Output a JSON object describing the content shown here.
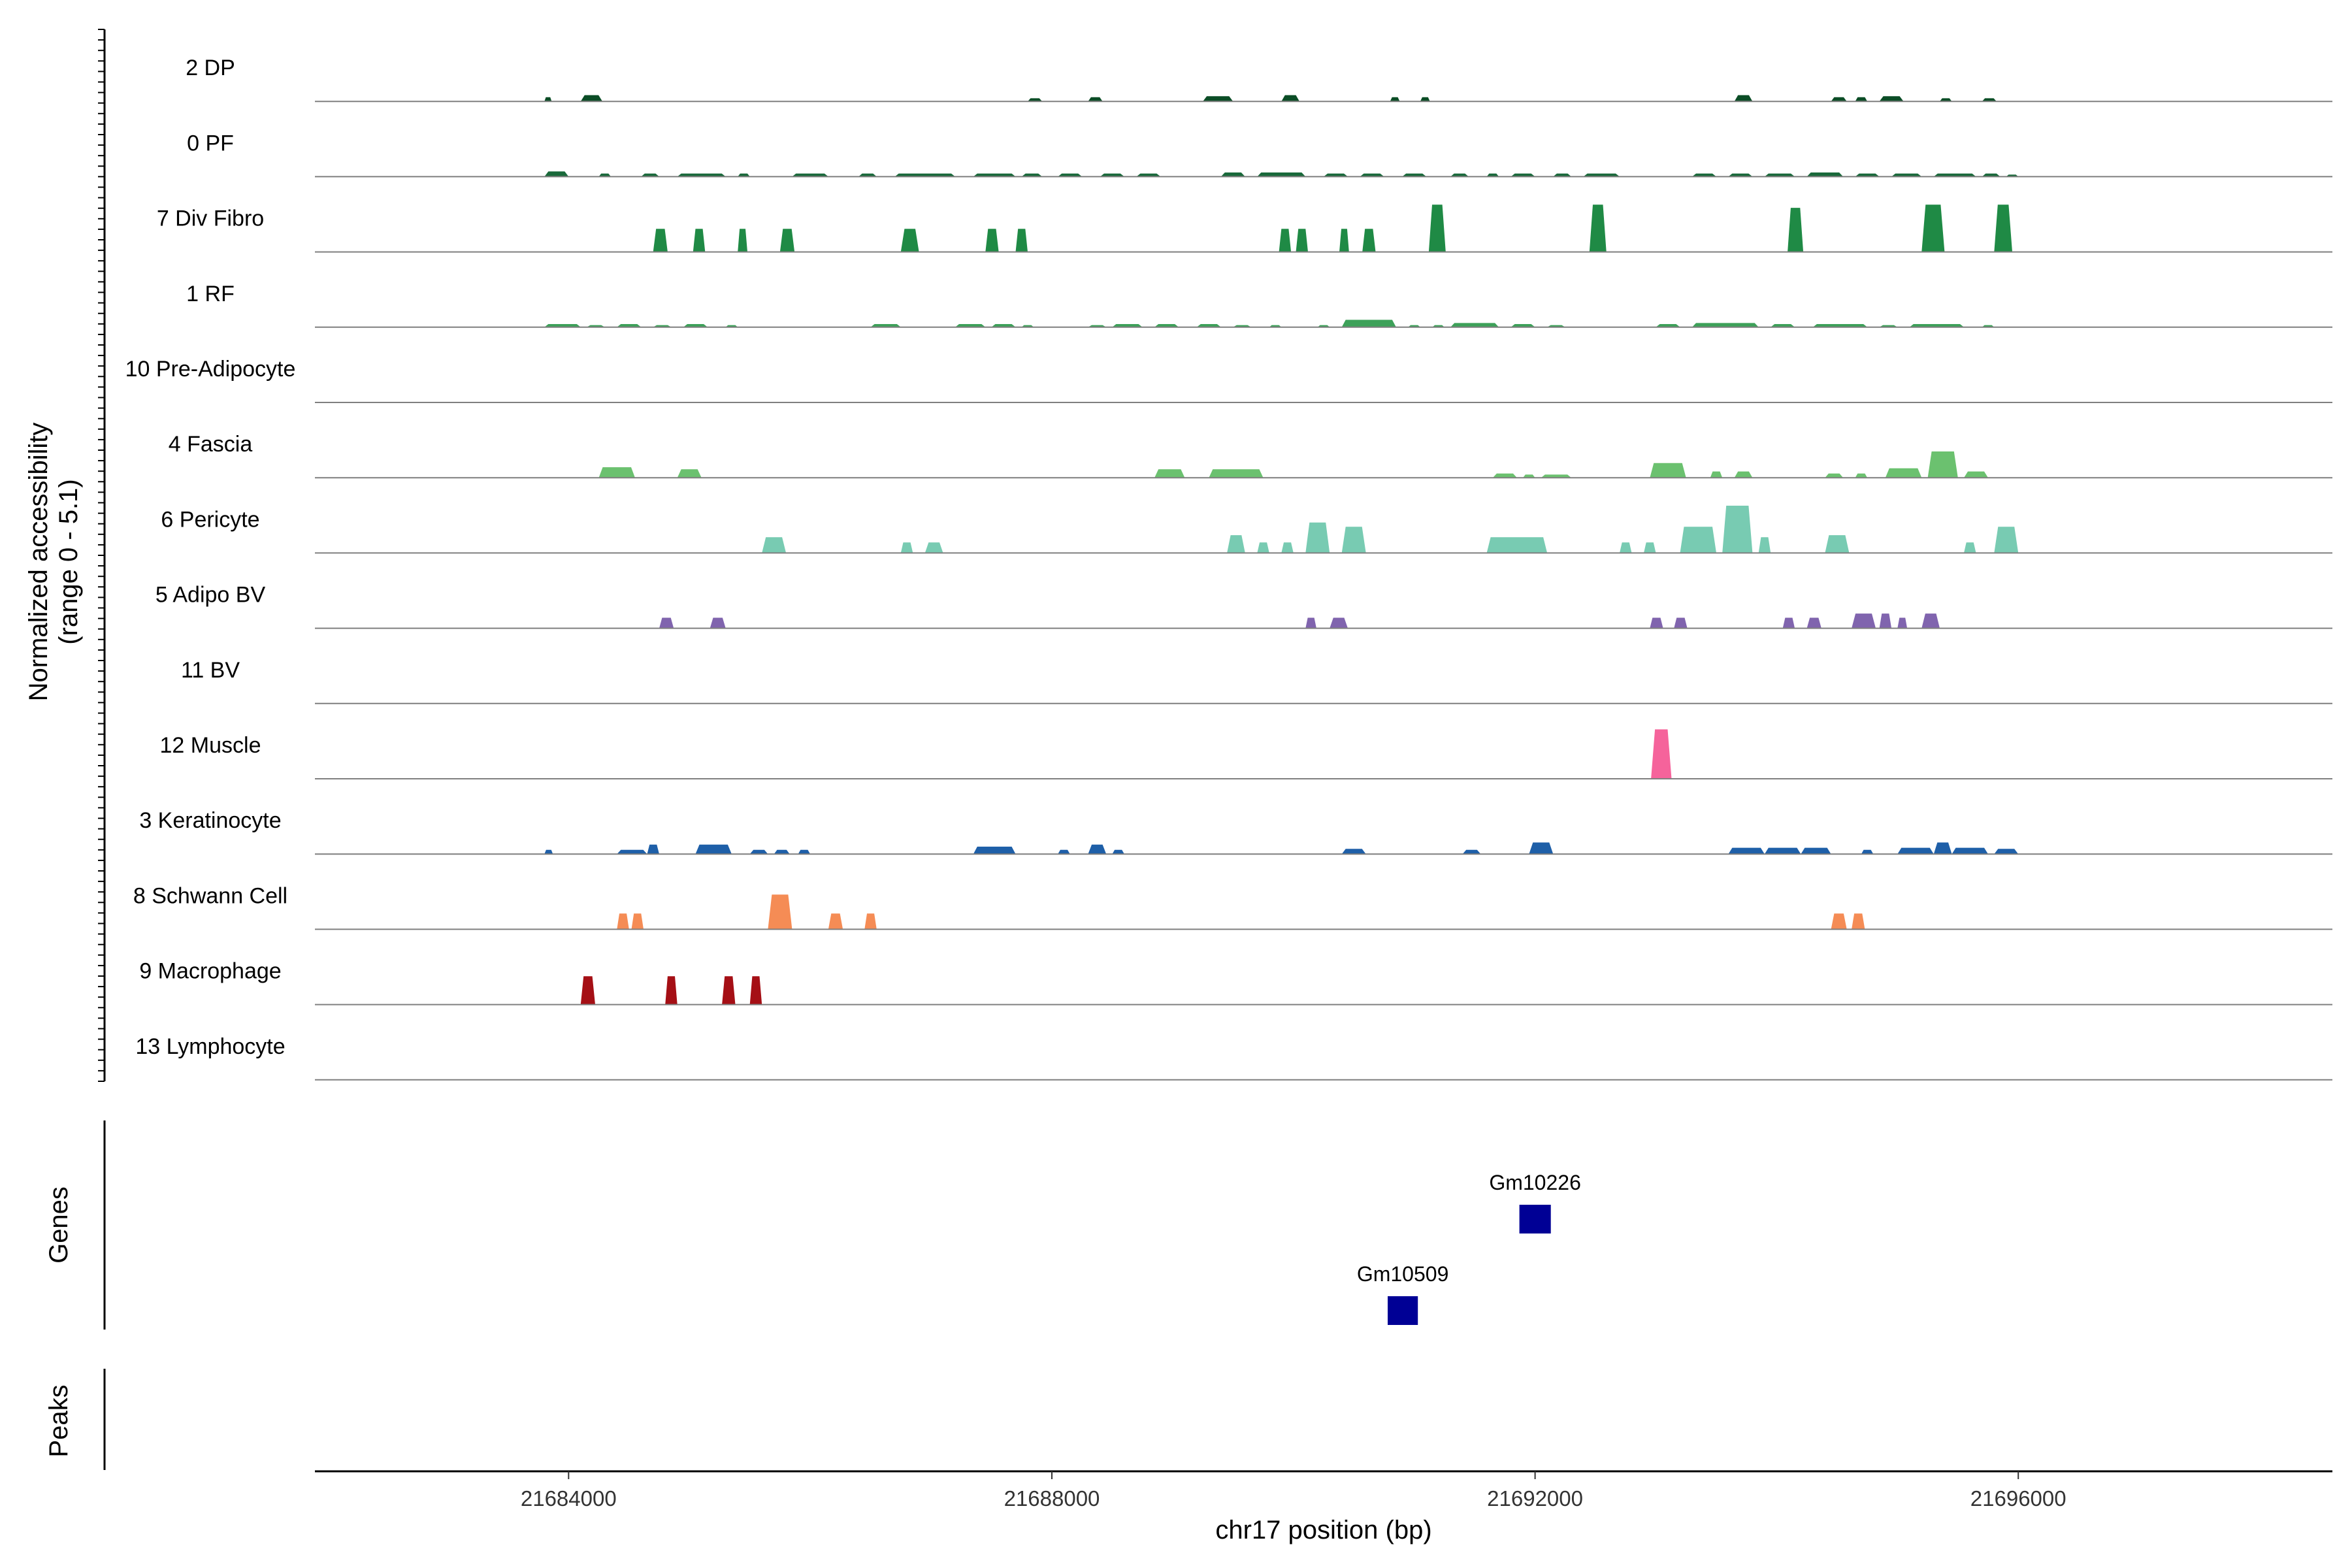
{
  "chart_data": {
    "type": "area",
    "x_axis": {
      "title": "chr17 position (bp)",
      "range": [
        21681900,
        21698600
      ],
      "ticks": [
        21684000,
        21688000,
        21692000,
        21696000
      ],
      "tick_labels": [
        "21684000",
        "21688000",
        "21692000",
        "21696000"
      ]
    },
    "y_axis": {
      "title_line1": "Normalized accessibility",
      "title_line2": "(range 0 - 5.1)",
      "range": [
        0,
        5.1
      ]
    },
    "genes_label": "Genes",
    "peaks_label": "Peaks",
    "tracks": [
      {
        "name": "2 DP",
        "color": "#0b4d26",
        "peaks": [
          [
            21683800,
            21683860,
            0.4
          ],
          [
            21684100,
            21684280,
            0.6
          ],
          [
            21687800,
            21687920,
            0.3
          ],
          [
            21688300,
            21688420,
            0.4
          ],
          [
            21689250,
            21689500,
            0.5
          ],
          [
            21689900,
            21690050,
            0.6
          ],
          [
            21690800,
            21690880,
            0.4
          ],
          [
            21691050,
            21691130,
            0.4
          ],
          [
            21693650,
            21693800,
            0.6
          ],
          [
            21694450,
            21694580,
            0.4
          ],
          [
            21694650,
            21694750,
            0.4
          ],
          [
            21694850,
            21695050,
            0.5
          ],
          [
            21695350,
            21695450,
            0.3
          ],
          [
            21695700,
            21695820,
            0.3
          ]
        ]
      },
      {
        "name": "0 PF",
        "color": "#19693a",
        "peaks": [
          [
            21683800,
            21684000,
            0.5
          ],
          [
            21684250,
            21684350,
            0.3
          ],
          [
            21684600,
            21684750,
            0.3
          ],
          [
            21684900,
            21685300,
            0.3
          ],
          [
            21685400,
            21685500,
            0.3
          ],
          [
            21685850,
            21686150,
            0.3
          ],
          [
            21686400,
            21686550,
            0.3
          ],
          [
            21686700,
            21687200,
            0.3
          ],
          [
            21687350,
            21687700,
            0.3
          ],
          [
            21687750,
            21687920,
            0.3
          ],
          [
            21688050,
            21688250,
            0.3
          ],
          [
            21688400,
            21688600,
            0.3
          ],
          [
            21688700,
            21688900,
            0.3
          ],
          [
            21689400,
            21689600,
            0.4
          ],
          [
            21689700,
            21690100,
            0.4
          ],
          [
            21690250,
            21690450,
            0.3
          ],
          [
            21690550,
            21690750,
            0.3
          ],
          [
            21690900,
            21691100,
            0.3
          ],
          [
            21691300,
            21691450,
            0.3
          ],
          [
            21691600,
            21691700,
            0.3
          ],
          [
            21691800,
            21692000,
            0.3
          ],
          [
            21692150,
            21692300,
            0.3
          ],
          [
            21692400,
            21692700,
            0.3
          ],
          [
            21693300,
            21693500,
            0.3
          ],
          [
            21693600,
            21693800,
            0.3
          ],
          [
            21693900,
            21694150,
            0.3
          ],
          [
            21694250,
            21694550,
            0.4
          ],
          [
            21694650,
            21694850,
            0.3
          ],
          [
            21694950,
            21695200,
            0.3
          ],
          [
            21695300,
            21695650,
            0.3
          ],
          [
            21695700,
            21695850,
            0.3
          ],
          [
            21695900,
            21696000,
            0.2
          ]
        ]
      },
      {
        "name": "7 Div Fibro",
        "color": "#1f8a45",
        "peaks": [
          [
            21684700,
            21684820,
            2.2
          ],
          [
            21685030,
            21685130,
            2.2
          ],
          [
            21685400,
            21685480,
            2.2
          ],
          [
            21685750,
            21685870,
            2.2
          ],
          [
            21686750,
            21686900,
            2.2
          ],
          [
            21687450,
            21687560,
            2.2
          ],
          [
            21687700,
            21687800,
            2.2
          ],
          [
            21689880,
            21689980,
            2.2
          ],
          [
            21690020,
            21690120,
            2.2
          ],
          [
            21690380,
            21690460,
            2.2
          ],
          [
            21690570,
            21690680,
            2.2
          ],
          [
            21691120,
            21691260,
            4.5
          ],
          [
            21692450,
            21692590,
            4.5
          ],
          [
            21694090,
            21694220,
            4.2
          ],
          [
            21695200,
            21695390,
            4.5
          ],
          [
            21695800,
            21695950,
            4.5
          ]
        ]
      },
      {
        "name": "1 RF",
        "color": "#3da159",
        "peaks": [
          [
            21683800,
            21684100,
            0.3
          ],
          [
            21684150,
            21684300,
            0.2
          ],
          [
            21684400,
            21684600,
            0.3
          ],
          [
            21684700,
            21684850,
            0.2
          ],
          [
            21684950,
            21685150,
            0.3
          ],
          [
            21685300,
            21685400,
            0.2
          ],
          [
            21686500,
            21686750,
            0.3
          ],
          [
            21687200,
            21687450,
            0.3
          ],
          [
            21687500,
            21687700,
            0.3
          ],
          [
            21687750,
            21687850,
            0.2
          ],
          [
            21688300,
            21688450,
            0.2
          ],
          [
            21688500,
            21688750,
            0.3
          ],
          [
            21688850,
            21689050,
            0.3
          ],
          [
            21689200,
            21689400,
            0.3
          ],
          [
            21689500,
            21689650,
            0.2
          ],
          [
            21689800,
            21689900,
            0.2
          ],
          [
            21690200,
            21690300,
            0.2
          ],
          [
            21690400,
            21690850,
            0.7
          ],
          [
            21690950,
            21691050,
            0.2
          ],
          [
            21691150,
            21691250,
            0.2
          ],
          [
            21691300,
            21691700,
            0.4
          ],
          [
            21691800,
            21692000,
            0.3
          ],
          [
            21692100,
            21692250,
            0.2
          ],
          [
            21693000,
            21693200,
            0.3
          ],
          [
            21693300,
            21693850,
            0.4
          ],
          [
            21693950,
            21694150,
            0.3
          ],
          [
            21694300,
            21694750,
            0.3
          ],
          [
            21694850,
            21695000,
            0.2
          ],
          [
            21695100,
            21695550,
            0.3
          ],
          [
            21695700,
            21695800,
            0.2
          ]
        ]
      },
      {
        "name": "10 Pre-Adipocyte",
        "color": "#4fae62",
        "peaks": []
      },
      {
        "name": "4 Fascia",
        "color": "#6bc16f",
        "peaks": [
          [
            21684250,
            21684550,
            1.0
          ],
          [
            21684900,
            21685100,
            0.8
          ],
          [
            21688850,
            21689100,
            0.8
          ],
          [
            21689300,
            21689750,
            0.8
          ],
          [
            21691650,
            21691850,
            0.4
          ],
          [
            21691900,
            21692000,
            0.3
          ],
          [
            21692050,
            21692300,
            0.3
          ],
          [
            21692950,
            21693250,
            1.4
          ],
          [
            21693450,
            21693550,
            0.6
          ],
          [
            21693650,
            21693800,
            0.6
          ],
          [
            21694400,
            21694550,
            0.4
          ],
          [
            21694650,
            21694750,
            0.4
          ],
          [
            21694900,
            21695200,
            0.9
          ],
          [
            21695250,
            21695500,
            2.5
          ],
          [
            21695550,
            21695750,
            0.6
          ]
        ]
      },
      {
        "name": "6 Pericyte",
        "color": "#78cbb2",
        "peaks": [
          [
            21685600,
            21685800,
            1.5
          ],
          [
            21686750,
            21686850,
            1.0
          ],
          [
            21686950,
            21687100,
            1.0
          ],
          [
            21689450,
            21689600,
            1.7
          ],
          [
            21689700,
            21689800,
            1.0
          ],
          [
            21689900,
            21690000,
            1.0
          ],
          [
            21690100,
            21690300,
            2.9
          ],
          [
            21690400,
            21690600,
            2.5
          ],
          [
            21691600,
            21692100,
            1.5
          ],
          [
            21692700,
            21692800,
            1.0
          ],
          [
            21692900,
            21693000,
            1.0
          ],
          [
            21693200,
            21693500,
            2.5
          ],
          [
            21693550,
            21693800,
            4.5
          ],
          [
            21693850,
            21693950,
            1.5
          ],
          [
            21694400,
            21694600,
            1.7
          ],
          [
            21695550,
            21695650,
            1.0
          ],
          [
            21695800,
            21696000,
            2.5
          ]
        ]
      },
      {
        "name": "5 Adipo BV",
        "color": "#8064ae",
        "peaks": [
          [
            21684750,
            21684870,
            1.0
          ],
          [
            21685170,
            21685300,
            1.0
          ],
          [
            21690100,
            21690190,
            1.0
          ],
          [
            21690300,
            21690450,
            1.0
          ],
          [
            21692950,
            21693060,
            1.0
          ],
          [
            21693150,
            21693260,
            1.0
          ],
          [
            21694050,
            21694150,
            1.0
          ],
          [
            21694250,
            21694370,
            1.0
          ],
          [
            21694620,
            21694820,
            1.4
          ],
          [
            21694850,
            21694950,
            1.4
          ],
          [
            21695000,
            21695080,
            1.0
          ],
          [
            21695200,
            21695350,
            1.4
          ]
        ]
      },
      {
        "name": "11 BV",
        "color": "#8064ae",
        "peaks": []
      },
      {
        "name": "12 Muscle",
        "color": "#f5639b",
        "peaks": [
          [
            21692960,
            21693130,
            4.7
          ]
        ]
      },
      {
        "name": "3 Keratinocyte",
        "color": "#1e5fa8",
        "peaks": [
          [
            21683800,
            21683870,
            0.4
          ],
          [
            21684400,
            21684650,
            0.4
          ],
          [
            21684650,
            21684750,
            0.9
          ],
          [
            21685050,
            21685350,
            0.9
          ],
          [
            21685500,
            21685650,
            0.4
          ],
          [
            21685700,
            21685830,
            0.4
          ],
          [
            21685900,
            21686000,
            0.4
          ],
          [
            21687350,
            21687700,
            0.7
          ],
          [
            21688050,
            21688150,
            0.4
          ],
          [
            21688300,
            21688450,
            0.9
          ],
          [
            21688500,
            21688600,
            0.4
          ],
          [
            21690400,
            21690600,
            0.5
          ],
          [
            21691400,
            21691550,
            0.4
          ],
          [
            21691950,
            21692150,
            1.1
          ],
          [
            21693600,
            21693900,
            0.6
          ],
          [
            21693900,
            21694200,
            0.6
          ],
          [
            21694200,
            21694450,
            0.6
          ],
          [
            21694700,
            21694800,
            0.4
          ],
          [
            21695000,
            21695300,
            0.6
          ],
          [
            21695300,
            21695450,
            1.1
          ],
          [
            21695450,
            21695750,
            0.6
          ],
          [
            21695800,
            21696000,
            0.5
          ]
        ]
      },
      {
        "name": "8 Schwann Cell",
        "color": "#f58c55",
        "peaks": [
          [
            21684400,
            21684500,
            1.5
          ],
          [
            21684520,
            21684620,
            1.5
          ],
          [
            21685650,
            21685850,
            3.3
          ],
          [
            21686150,
            21686270,
            1.5
          ],
          [
            21686450,
            21686550,
            1.5
          ],
          [
            21694450,
            21694580,
            1.5
          ],
          [
            21694620,
            21694730,
            1.5
          ]
        ]
      },
      {
        "name": "9 Macrophage",
        "color": "#a50f15",
        "peaks": [
          [
            21684100,
            21684220,
            2.7
          ],
          [
            21684800,
            21684900,
            2.7
          ],
          [
            21685270,
            21685380,
            2.7
          ],
          [
            21685500,
            21685600,
            2.7
          ]
        ]
      },
      {
        "name": "13 Lymphocyte",
        "color": "#a50f15",
        "peaks": []
      }
    ],
    "genes": [
      {
        "name": "Gm10226",
        "start": 21691870,
        "end": 21692130,
        "row": 1,
        "color": "#000095"
      },
      {
        "name": "Gm10509",
        "start": 21690780,
        "end": 21691030,
        "row": 2,
        "color": "#000095"
      }
    ]
  }
}
